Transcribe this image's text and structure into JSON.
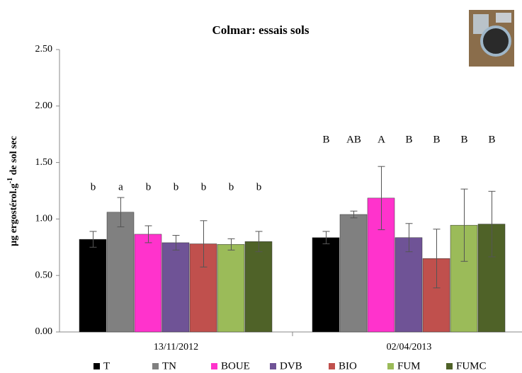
{
  "chart_data": {
    "type": "bar",
    "title": "Colmar: essais sols",
    "y_label": [
      "µg ergostérol.g",
      "-1",
      " de sol sec"
    ],
    "categories": [
      "13/11/2012",
      "02/04/2013"
    ],
    "ylim": [
      0,
      2.5
    ],
    "yticks": [
      {
        "value": 0,
        "label": "0.00"
      },
      {
        "value": 0.5,
        "label": "0.50"
      },
      {
        "value": 1,
        "label": "1.00"
      },
      {
        "value": 1.5,
        "label": "1.50"
      },
      {
        "value": 2,
        "label": "2.00"
      },
      {
        "value": 2.5,
        "label": "2.50"
      }
    ],
    "series": [
      {
        "name": "T",
        "color": "#000000",
        "values": [
          0.82,
          0.835
        ],
        "errors": [
          0.07,
          0.055
        ],
        "letters": [
          "b",
          "B"
        ]
      },
      {
        "name": "TN",
        "color": "#808080",
        "values": [
          1.06,
          1.04
        ],
        "errors": [
          0.13,
          0.03
        ],
        "letters": [
          "a",
          "AB"
        ]
      },
      {
        "name": "BOUE",
        "color": "#ff33cc",
        "values": [
          0.865,
          1.185
        ],
        "errors": [
          0.075,
          0.28
        ],
        "letters": [
          "b",
          "A"
        ]
      },
      {
        "name": "DVB",
        "color": "#6f5396",
        "values": [
          0.79,
          0.835
        ],
        "errors": [
          0.065,
          0.125
        ],
        "letters": [
          "b",
          "B"
        ]
      },
      {
        "name": "BIO",
        "color": "#c0504d",
        "values": [
          0.78,
          0.65
        ],
        "errors": [
          0.205,
          0.26
        ],
        "letters": [
          "b",
          "B"
        ]
      },
      {
        "name": "FUM",
        "color": "#9bbb59",
        "values": [
          0.775,
          0.945
        ],
        "errors": [
          0.05,
          0.32
        ],
        "letters": [
          "b",
          "B"
        ]
      },
      {
        "name": "FUMC",
        "color": "#4f6228",
        "values": [
          0.8,
          0.955
        ],
        "errors": [
          0.09,
          0.29
        ],
        "letters": [
          "b",
          "B"
        ]
      }
    ]
  }
}
